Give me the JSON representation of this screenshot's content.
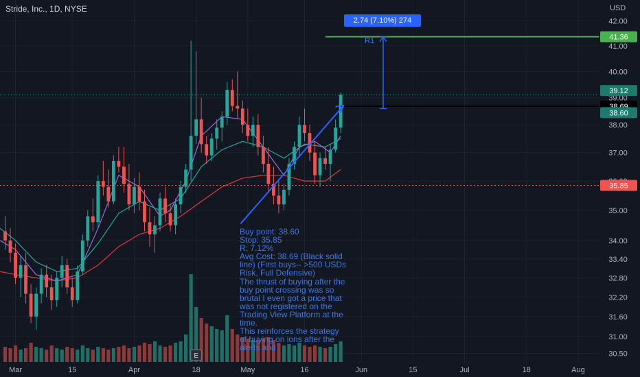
{
  "header": {
    "title": "Stride, Inc., 1D, NYSE",
    "currency": "USD"
  },
  "colors": {
    "up": "#26a69a",
    "down": "#ef5350",
    "bg": "#131722",
    "grid": "#1e222d",
    "ma_fast": "#9c6ade",
    "ma_mid": "#26a69a",
    "ma_slow": "#e53935",
    "target": "#4caf50",
    "avg_cost": "#000000",
    "annotation": "#2962ff",
    "volume_up": "#1f6f66",
    "volume_down": "#8b3a3a"
  },
  "annotation": {
    "note": "Buy point: 38.60\nStop: 35.85\nR: 7.12%\nAvg Cost: 38.69 (Black solid line) (First buys-- >500 USDs Risk, Full Defensive)\nThe thrust of buying after the buy point crossing was so brutal I even got a price that was not registered on the Trading View Platform at the time.\nThis reinforces the strategy of buying on ions after the alerts and",
    "measure": "2.74 (7.10%) 274",
    "r1": "R1",
    "earnings_marker": "E"
  },
  "chart_data": {
    "type": "candlestick",
    "title": "Stride, Inc., 1D, NYSE",
    "y_axis": {
      "ticks": [
        42.0,
        41.0,
        40.0,
        39.0,
        38.0,
        37.0,
        36.0,
        35.0,
        34.0,
        33.4,
        32.8,
        32.2,
        31.6,
        31.0,
        30.5
      ],
      "log": true,
      "range": [
        30.25,
        42.4
      ]
    },
    "x_axis": {
      "ticks": [
        {
          "label": "Mar",
          "day": 0
        },
        {
          "label": "15",
          "day": 11
        },
        {
          "label": "Apr",
          "day": 23
        },
        {
          "label": "18",
          "day": 35
        },
        {
          "label": "May",
          "day": 45
        },
        {
          "label": "16",
          "day": 56
        },
        {
          "label": "Jun",
          "day": 67
        },
        {
          "label": "15",
          "day": 77
        },
        {
          "label": "Jul",
          "day": 87
        },
        {
          "label": "18",
          "day": 99
        },
        {
          "label": "Aug",
          "day": 109
        }
      ],
      "range": [
        -3,
        113
      ]
    },
    "price_levels": [
      {
        "name": "target",
        "value": 41.36,
        "label": "41.36"
      },
      {
        "name": "last",
        "value": 39.12,
        "label": "39.12"
      },
      {
        "name": "avg-cost",
        "value": 38.69,
        "label": "38.69"
      },
      {
        "name": "buy-point",
        "value": 38.6,
        "label": "38.60"
      },
      {
        "name": "stop",
        "value": 35.85,
        "label": "35.85"
      }
    ],
    "candles": [
      [
        -2,
        34.3,
        34.8,
        33.7,
        34.0
      ],
      [
        -1,
        34.0,
        34.4,
        33.3,
        33.6
      ],
      [
        0,
        33.6,
        33.9,
        32.6,
        32.8
      ],
      [
        1,
        32.8,
        33.5,
        32.2,
        33.2
      ],
      [
        2,
        33.2,
        33.6,
        32.0,
        32.3
      ],
      [
        3,
        32.3,
        32.6,
        31.4,
        31.6
      ],
      [
        4,
        31.6,
        32.5,
        31.2,
        32.3
      ],
      [
        5,
        32.3,
        33.1,
        32.0,
        32.9
      ],
      [
        6,
        32.9,
        33.2,
        32.2,
        32.5
      ],
      [
        7,
        32.5,
        32.9,
        31.8,
        32.1
      ],
      [
        8,
        32.1,
        33.0,
        31.9,
        32.8
      ],
      [
        9,
        32.8,
        33.5,
        32.5,
        33.2
      ],
      [
        10,
        33.2,
        33.4,
        32.3,
        32.5
      ],
      [
        11,
        32.5,
        32.8,
        31.9,
        32.1
      ],
      [
        12,
        32.1,
        33.2,
        32.0,
        33.0
      ],
      [
        13,
        33.0,
        34.2,
        32.9,
        34.0
      ],
      [
        14,
        34.0,
        35.0,
        33.8,
        34.8
      ],
      [
        15,
        34.8,
        35.4,
        34.3,
        34.6
      ],
      [
        16,
        34.6,
        36.2,
        34.4,
        36.0
      ],
      [
        17,
        36.0,
        36.7,
        35.5,
        35.8
      ],
      [
        18,
        35.8,
        36.4,
        35.1,
        35.3
      ],
      [
        19,
        35.3,
        36.9,
        35.2,
        36.7
      ],
      [
        20,
        36.7,
        37.2,
        36.3,
        36.5
      ],
      [
        21,
        36.5,
        37.2,
        35.6,
        35.9
      ],
      [
        22,
        35.9,
        36.6,
        35.0,
        35.2
      ],
      [
        23,
        35.2,
        36.1,
        34.9,
        35.8
      ],
      [
        24,
        35.8,
        36.3,
        35.0,
        35.3
      ],
      [
        25,
        35.3,
        35.7,
        34.3,
        34.6
      ],
      [
        26,
        34.6,
        35.1,
        33.8,
        34.2
      ],
      [
        27,
        34.2,
        34.8,
        33.6,
        34.5
      ],
      [
        28,
        34.5,
        35.6,
        34.3,
        35.4
      ],
      [
        29,
        35.4,
        35.8,
        34.6,
        34.9
      ],
      [
        30,
        34.9,
        35.2,
        34.3,
        34.5
      ],
      [
        31,
        34.5,
        35.4,
        34.2,
        35.2
      ],
      [
        32,
        35.2,
        36.0,
        34.9,
        35.8
      ],
      [
        33,
        35.8,
        36.6,
        35.6,
        36.4
      ],
      [
        34,
        36.4,
        41.2,
        36.0,
        37.6
      ],
      [
        35,
        37.6,
        40.8,
        37.3,
        38.2
      ],
      [
        36,
        38.2,
        39.0,
        37.0,
        37.3
      ],
      [
        37,
        37.3,
        37.6,
        36.6,
        36.9
      ],
      [
        38,
        36.9,
        37.7,
        36.7,
        37.5
      ],
      [
        39,
        37.5,
        38.2,
        37.1,
        37.9
      ],
      [
        40,
        37.9,
        38.5,
        37.4,
        38.3
      ],
      [
        41,
        38.3,
        39.6,
        38.0,
        39.3
      ],
      [
        42,
        39.3,
        39.7,
        38.5,
        38.7
      ],
      [
        43,
        38.7,
        40.0,
        38.2,
        38.6
      ],
      [
        44,
        38.6,
        38.9,
        37.7,
        38.0
      ],
      [
        45,
        38.0,
        38.6,
        37.4,
        37.6
      ],
      [
        46,
        37.6,
        38.3,
        37.2,
        38.0
      ],
      [
        47,
        38.0,
        38.4,
        36.9,
        37.2
      ],
      [
        48,
        37.2,
        37.6,
        36.3,
        36.6
      ],
      [
        49,
        36.6,
        37.2,
        35.6,
        35.9
      ],
      [
        50,
        35.9,
        36.5,
        35.2,
        35.5
      ],
      [
        51,
        35.5,
        36.0,
        34.9,
        35.2
      ],
      [
        52,
        35.2,
        35.9,
        35.0,
        35.7
      ],
      [
        53,
        35.7,
        36.8,
        35.5,
        36.6
      ],
      [
        54,
        36.6,
        37.4,
        36.4,
        37.2
      ],
      [
        55,
        37.2,
        38.3,
        36.9,
        38.0
      ],
      [
        56,
        38.0,
        38.6,
        37.4,
        37.7
      ],
      [
        57,
        37.7,
        38.0,
        36.7,
        37.0
      ],
      [
        58,
        37.0,
        37.4,
        35.9,
        36.2
      ],
      [
        59,
        36.2,
        37.0,
        35.8,
        36.8
      ],
      [
        60,
        36.8,
        37.2,
        36.4,
        36.6
      ],
      [
        61,
        36.6,
        37.3,
        36.0,
        37.1
      ],
      [
        62,
        37.1,
        38.2,
        37.0,
        37.9
      ],
      [
        63,
        37.9,
        39.2,
        37.7,
        39.12
      ]
    ],
    "volume": [
      [
        -2,
        0.55
      ],
      [
        -1,
        0.5
      ],
      [
        0,
        0.6
      ],
      [
        1,
        0.45
      ],
      [
        2,
        0.5
      ],
      [
        3,
        0.7
      ],
      [
        4,
        0.55
      ],
      [
        5,
        0.5
      ],
      [
        6,
        0.45
      ],
      [
        7,
        0.6
      ],
      [
        8,
        0.5
      ],
      [
        9,
        0.45
      ],
      [
        10,
        0.55
      ],
      [
        11,
        0.5
      ],
      [
        12,
        0.45
      ],
      [
        13,
        0.6
      ],
      [
        14,
        0.5
      ],
      [
        15,
        0.45
      ],
      [
        16,
        0.55
      ],
      [
        17,
        0.5
      ],
      [
        18,
        0.45
      ],
      [
        19,
        0.5
      ],
      [
        20,
        0.55
      ],
      [
        21,
        0.6
      ],
      [
        22,
        0.5
      ],
      [
        23,
        0.55
      ],
      [
        24,
        0.6
      ],
      [
        25,
        0.7
      ],
      [
        26,
        0.65
      ],
      [
        27,
        0.75
      ],
      [
        28,
        0.6
      ],
      [
        29,
        0.55
      ],
      [
        30,
        0.6
      ],
      [
        31,
        0.7
      ],
      [
        32,
        0.75
      ],
      [
        33,
        1.0
      ],
      [
        34,
        3.2
      ],
      [
        35,
        2.0
      ],
      [
        36,
        1.6
      ],
      [
        37,
        1.4
      ],
      [
        38,
        1.3
      ],
      [
        39,
        1.2
      ],
      [
        40,
        1.15
      ],
      [
        41,
        1.7
      ],
      [
        42,
        1.2
      ],
      [
        43,
        1.0
      ],
      [
        44,
        0.9
      ],
      [
        45,
        0.85
      ],
      [
        46,
        0.8
      ],
      [
        47,
        0.8
      ],
      [
        48,
        0.85
      ],
      [
        49,
        0.9
      ],
      [
        50,
        0.8
      ],
      [
        51,
        0.7
      ],
      [
        52,
        0.6
      ],
      [
        53,
        0.65
      ],
      [
        54,
        0.6
      ],
      [
        55,
        0.7
      ],
      [
        56,
        0.6
      ],
      [
        57,
        0.55
      ],
      [
        58,
        0.6
      ],
      [
        59,
        0.55
      ],
      [
        60,
        0.5
      ],
      [
        61,
        0.55
      ],
      [
        62,
        0.65
      ],
      [
        63,
        0.75
      ]
    ],
    "ma_fast": [
      [
        -3,
        34.0
      ],
      [
        0,
        33.7
      ],
      [
        4,
        32.9
      ],
      [
        8,
        32.7
      ],
      [
        12,
        32.9
      ],
      [
        16,
        34.4
      ],
      [
        20,
        36.2
      ],
      [
        24,
        35.8
      ],
      [
        28,
        34.8
      ],
      [
        30,
        35.0
      ],
      [
        33,
        36.0
      ],
      [
        36,
        37.6
      ],
      [
        40,
        38.3
      ],
      [
        44,
        38.2
      ],
      [
        48,
        37.2
      ],
      [
        52,
        36.2
      ],
      [
        55,
        37.2
      ],
      [
        58,
        37.4
      ],
      [
        61,
        37.0
      ],
      [
        63,
        37.6
      ]
    ],
    "ma_mid": [
      [
        -3,
        34.4
      ],
      [
        0,
        34.0
      ],
      [
        4,
        33.3
      ],
      [
        8,
        33.0
      ],
      [
        12,
        33.1
      ],
      [
        16,
        33.9
      ],
      [
        20,
        34.9
      ],
      [
        24,
        35.3
      ],
      [
        28,
        35.0
      ],
      [
        32,
        35.4
      ],
      [
        36,
        36.5
      ],
      [
        40,
        37.1
      ],
      [
        44,
        37.4
      ],
      [
        48,
        37.2
      ],
      [
        52,
        36.8
      ],
      [
        56,
        37.3
      ],
      [
        60,
        37.2
      ],
      [
        63,
        37.5
      ]
    ],
    "ma_slow": [
      [
        -3,
        33.0
      ],
      [
        0,
        32.9
      ],
      [
        4,
        32.8
      ],
      [
        8,
        32.7
      ],
      [
        12,
        32.8
      ],
      [
        16,
        33.2
      ],
      [
        20,
        33.8
      ],
      [
        24,
        34.2
      ],
      [
        28,
        34.4
      ],
      [
        32,
        34.8
      ],
      [
        36,
        35.3
      ],
      [
        40,
        35.8
      ],
      [
        44,
        36.1
      ],
      [
        48,
        36.2
      ],
      [
        52,
        36.2
      ],
      [
        56,
        36.0
      ],
      [
        60,
        36.0
      ],
      [
        63,
        36.4
      ]
    ]
  }
}
